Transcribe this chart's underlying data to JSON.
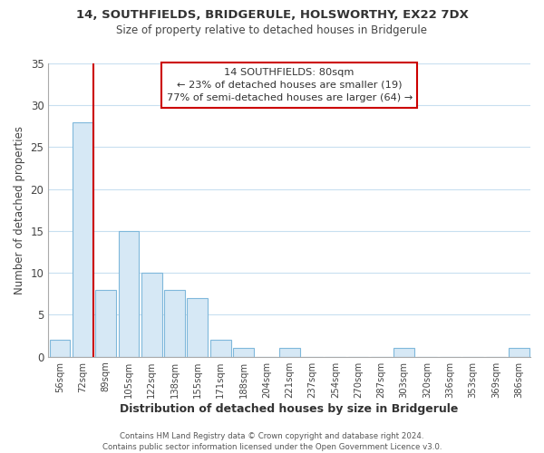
{
  "title": "14, SOUTHFIELDS, BRIDGERULE, HOLSWORTHY, EX22 7DX",
  "subtitle": "Size of property relative to detached houses in Bridgerule",
  "xlabel": "Distribution of detached houses by size in Bridgerule",
  "ylabel": "Number of detached properties",
  "bin_labels": [
    "56sqm",
    "72sqm",
    "89sqm",
    "105sqm",
    "122sqm",
    "138sqm",
    "155sqm",
    "171sqm",
    "188sqm",
    "204sqm",
    "221sqm",
    "237sqm",
    "254sqm",
    "270sqm",
    "287sqm",
    "303sqm",
    "320sqm",
    "336sqm",
    "353sqm",
    "369sqm",
    "386sqm"
  ],
  "bar_heights": [
    2,
    28,
    8,
    15,
    10,
    8,
    7,
    2,
    1,
    0,
    1,
    0,
    0,
    0,
    0,
    1,
    0,
    0,
    0,
    0,
    1
  ],
  "bar_facecolor": "#d6e8f5",
  "bar_edgecolor": "#7fb8db",
  "marker_line_index": 1,
  "marker_line_color": "#cc0000",
  "ylim": [
    0,
    35
  ],
  "yticks": [
    0,
    5,
    10,
    15,
    20,
    25,
    30,
    35
  ],
  "annotation_title": "14 SOUTHFIELDS: 80sqm",
  "annotation_line1": "← 23% of detached houses are smaller (19)",
  "annotation_line2": "77% of semi-detached houses are larger (64) →",
  "annotation_box_color": "#ffffff",
  "annotation_box_edge_color": "#cc0000",
  "footer_line1": "Contains HM Land Registry data © Crown copyright and database right 2024.",
  "footer_line2": "Contains public sector information licensed under the Open Government Licence v3.0.",
  "background_color": "#ffffff",
  "grid_color": "#c8dff0"
}
